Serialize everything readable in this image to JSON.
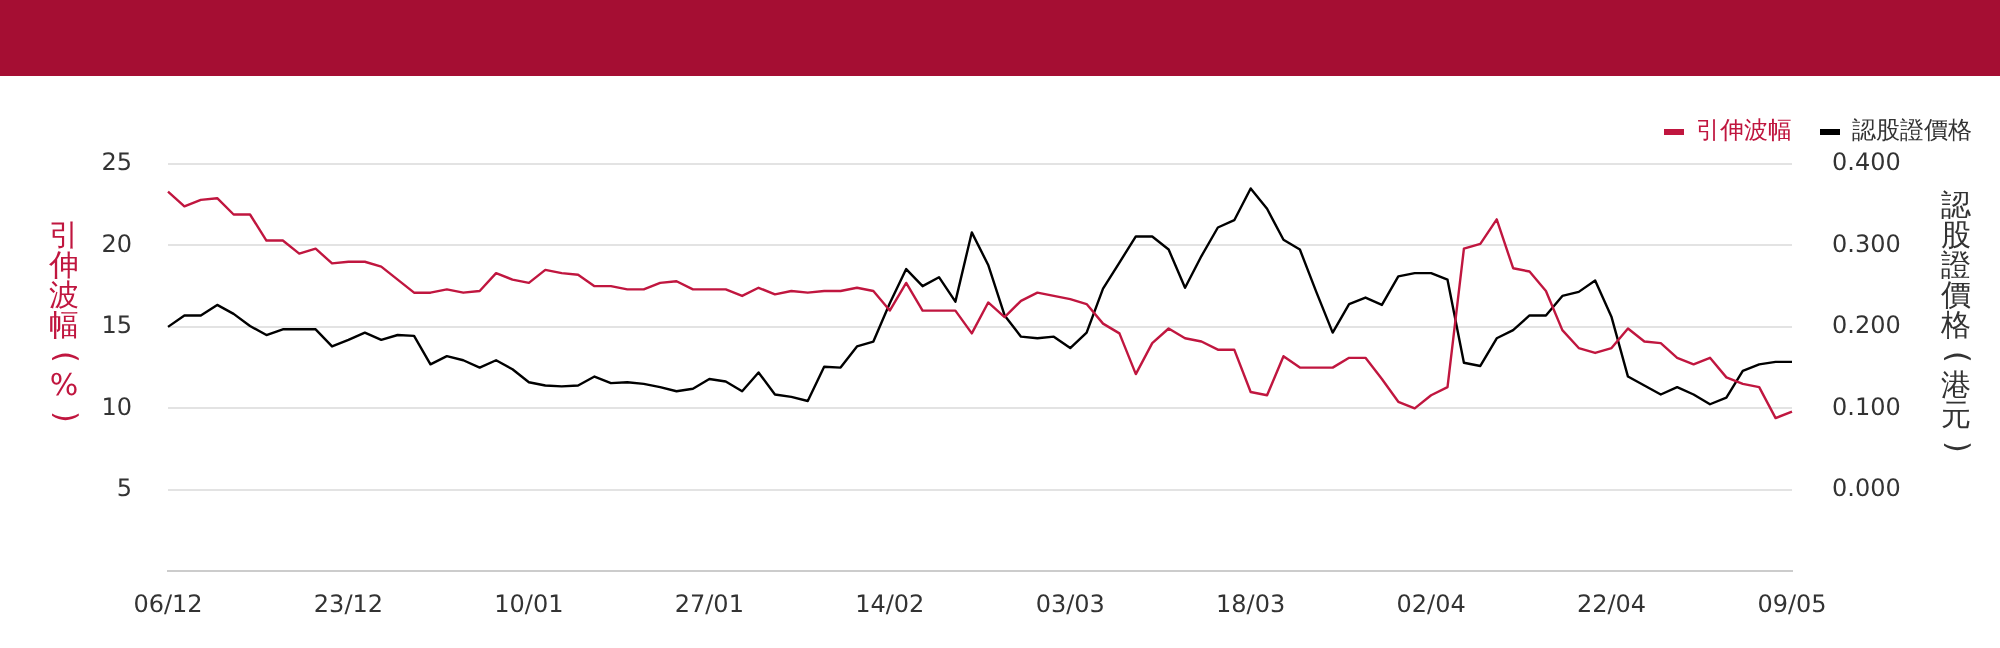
{
  "chart_data": {
    "type": "line",
    "categories": [
      "06/12",
      null,
      null,
      null,
      null,
      null,
      null,
      null,
      null,
      null,
      null,
      "23/12",
      null,
      null,
      null,
      null,
      null,
      null,
      null,
      null,
      null,
      null,
      "10/01",
      null,
      null,
      null,
      null,
      null,
      null,
      null,
      null,
      null,
      null,
      "27/01",
      null,
      null,
      null,
      null,
      null,
      null,
      null,
      null,
      null,
      null,
      "14/02",
      null,
      null,
      null,
      null,
      null,
      null,
      null,
      null,
      null,
      null,
      "03/03",
      null,
      null,
      null,
      null,
      null,
      null,
      null,
      null,
      null,
      null,
      "18/03",
      null,
      null,
      null,
      null,
      null,
      null,
      null,
      null,
      null,
      null,
      "02/04",
      null,
      null,
      null,
      null,
      null,
      null,
      null,
      null,
      null,
      null,
      "22/04",
      null,
      null,
      null,
      null,
      null,
      null,
      null,
      null,
      null,
      null,
      "09/05"
    ],
    "series": [
      {
        "name": "引伸波幅",
        "color": "#c0163f",
        "values": [
          23.3,
          22.4,
          22.8,
          22.9,
          21.9,
          21.9,
          20.3,
          20.3,
          19.5,
          19.8,
          18.9,
          19.0,
          19.0,
          18.7,
          17.9,
          17.1,
          17.1,
          17.3,
          17.1,
          17.2,
          18.3,
          17.9,
          17.7,
          18.5,
          18.3,
          18.2,
          17.5,
          17.5,
          17.3,
          17.3,
          17.7,
          17.8,
          17.3,
          17.3,
          17.3,
          16.9,
          17.4,
          17.0,
          17.2,
          17.1,
          17.2,
          17.2,
          17.4,
          17.2,
          16.0,
          17.7,
          16.0,
          16.0,
          16.0,
          14.6,
          16.5,
          15.6,
          16.6,
          17.1,
          16.9,
          16.7,
          16.4,
          15.2,
          14.6,
          12.1,
          14.0,
          14.9,
          14.3,
          14.1,
          13.6,
          13.6,
          11.0,
          10.8,
          13.2,
          12.5,
          12.5,
          12.5,
          13.1,
          13.1,
          11.8,
          10.4,
          10.0,
          10.8,
          11.3,
          19.8,
          20.1,
          21.6,
          18.6,
          18.4,
          17.2,
          14.8,
          13.7,
          13.4,
          13.7,
          14.9,
          14.1,
          14.0,
          13.1,
          12.7,
          13.1,
          11.9,
          11.5,
          11.3,
          9.4,
          9.8
        ]
      },
      {
        "name": "認股證價格",
        "color": "#000000",
        "axis": "y2",
        "values": [
          0.2,
          0.214,
          0.214,
          0.227,
          0.216,
          0.201,
          0.19,
          0.197,
          0.197,
          0.197,
          0.176,
          0.184,
          0.193,
          0.184,
          0.19,
          0.189,
          0.154,
          0.164,
          0.159,
          0.15,
          0.159,
          0.148,
          0.132,
          0.128,
          0.127,
          0.128,
          0.139,
          0.131,
          0.132,
          0.13,
          0.126,
          0.121,
          0.124,
          0.136,
          0.133,
          0.121,
          0.144,
          0.117,
          0.114,
          0.109,
          0.151,
          0.15,
          0.176,
          0.182,
          0.229,
          0.271,
          0.25,
          0.261,
          0.231,
          0.316,
          0.276,
          0.214,
          0.188,
          0.186,
          0.188,
          0.174,
          0.193,
          0.247,
          0.279,
          0.311,
          0.311,
          0.295,
          0.248,
          0.287,
          0.322,
          0.331,
          0.37,
          0.345,
          0.307,
          0.295,
          0.243,
          0.193,
          0.228,
          0.236,
          0.227,
          0.262,
          0.266,
          0.266,
          0.258,
          0.156,
          0.152,
          0.186,
          0.196,
          0.214,
          0.214,
          0.238,
          0.243,
          0.257,
          0.212,
          0.139,
          0.128,
          0.117,
          0.126,
          0.117,
          0.105,
          0.113,
          0.146,
          0.154,
          0.157,
          0.157
        ]
      }
    ],
    "ylabel": "引伸波幅 (%)",
    "y2label": "認股證價格 (港元)",
    "ylim": [
      0,
      25
    ],
    "yticks": [
      5,
      10,
      15,
      20,
      25
    ],
    "y2lim": [
      -0.1,
      0.4
    ],
    "y2ticks": [
      {
        "value": 0,
        "label": "0.000"
      },
      {
        "value": 0.1,
        "label": "0.100"
      },
      {
        "value": 0.2,
        "label": "0.200"
      },
      {
        "value": 0.3,
        "label": "0.300"
      },
      {
        "value": 0.4,
        "label": "0.400"
      }
    ],
    "grid": "y",
    "legend": "top right",
    "marker": "none",
    "line_style": "solid"
  }
}
